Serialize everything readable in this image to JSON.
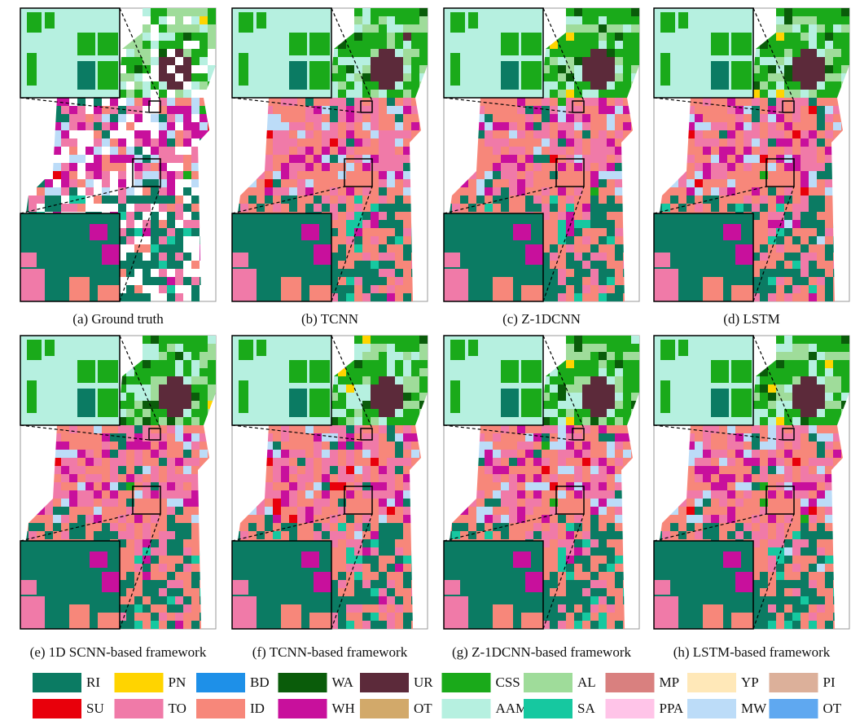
{
  "panels": [
    {
      "caption": "(a) Ground truth"
    },
    {
      "caption": "(b) TCNN"
    },
    {
      "caption": "(c) Z-1DCNN"
    },
    {
      "caption": "(d) LSTM"
    },
    {
      "caption": "(e) 1D SCNN-based framework"
    },
    {
      "caption": "(f) TCNN-based framework"
    },
    {
      "caption": "(g) Z-1DCNN-based framework"
    },
    {
      "caption": "(h) LSTM-based framework"
    }
  ],
  "legend": [
    [
      {
        "label": "RI",
        "color": "#0b7b63"
      },
      {
        "label": "PN",
        "color": "#ffd400"
      },
      {
        "label": "BD",
        "color": "#1e90e8"
      },
      {
        "label": "WA",
        "color": "#0a5c0a"
      },
      {
        "label": "UR",
        "color": "#5c2a3a"
      },
      {
        "label": "CSS",
        "color": "#1aaa1a"
      },
      {
        "label": "AL",
        "color": "#9fdc9a"
      },
      {
        "label": "MP",
        "color": "#d9807f"
      },
      {
        "label": "YP",
        "color": "#ffe8b8"
      },
      {
        "label": "PI",
        "color": "#dcb09a"
      }
    ],
    [
      {
        "label": "SU",
        "color": "#e8000b"
      },
      {
        "label": "TO",
        "color": "#f07aa8"
      },
      {
        "label": "ID",
        "color": "#f7877a"
      },
      {
        "label": "WH",
        "color": "#c8109c"
      },
      {
        "label": "OT",
        "color": "#d2a96a"
      },
      {
        "label": "AAM",
        "color": "#b6f0e0"
      },
      {
        "label": "SA",
        "color": "#16c8a0"
      },
      {
        "label": "PPA",
        "color": "#ffc4e8"
      },
      {
        "label": "MW",
        "color": "#bcdcf8"
      },
      {
        "label": "OT",
        "color": "#5fa8f0"
      }
    ]
  ]
}
